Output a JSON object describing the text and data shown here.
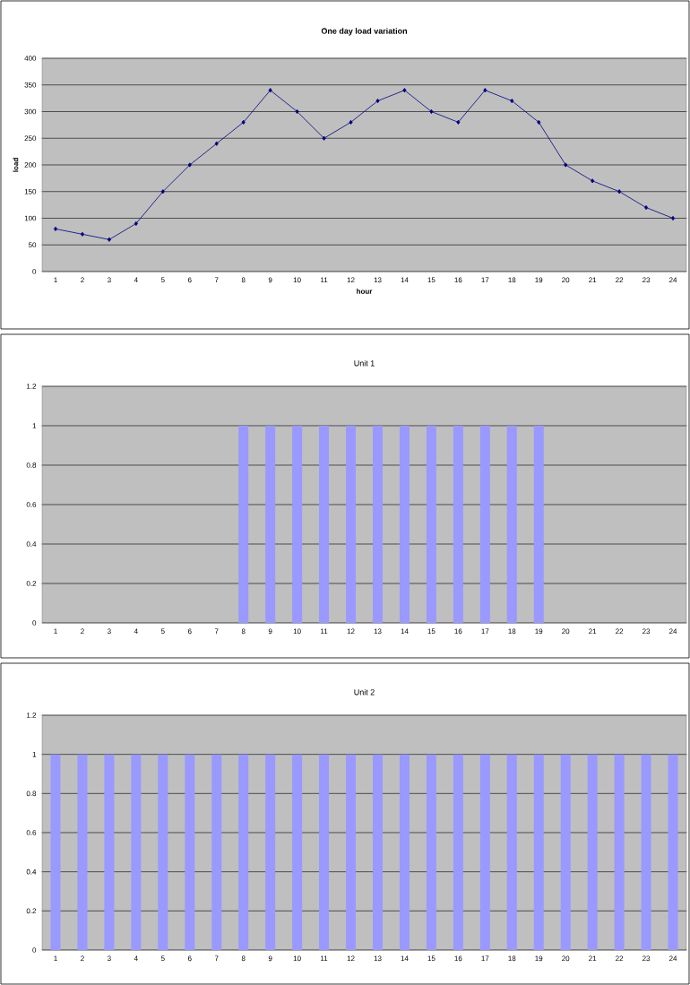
{
  "chart_data": [
    {
      "type": "line",
      "title": "One day load variation",
      "xlabel": "hour",
      "ylabel": "load",
      "categories": [
        "1",
        "2",
        "3",
        "4",
        "5",
        "6",
        "7",
        "8",
        "9",
        "10",
        "11",
        "12",
        "13",
        "14",
        "15",
        "16",
        "17",
        "18",
        "19",
        "20",
        "21",
        "22",
        "23",
        "24"
      ],
      "values": [
        80,
        70,
        60,
        90,
        150,
        200,
        240,
        280,
        340,
        300,
        250,
        280,
        320,
        340,
        300,
        280,
        340,
        320,
        280,
        200,
        170,
        150,
        120,
        100
      ],
      "color": "#000080",
      "marker": "diamond",
      "ylim": [
        0,
        400
      ],
      "yticks": [
        0,
        50,
        100,
        150,
        200,
        250,
        300,
        350,
        400
      ],
      "grid": "y"
    },
    {
      "type": "bar",
      "title": "Unit 1",
      "categories": [
        "1",
        "2",
        "3",
        "4",
        "5",
        "6",
        "7",
        "8",
        "9",
        "10",
        "11",
        "12",
        "13",
        "14",
        "15",
        "16",
        "17",
        "18",
        "19",
        "20",
        "21",
        "22",
        "23",
        "24"
      ],
      "values": [
        0,
        0,
        0,
        0,
        0,
        0,
        0,
        1,
        1,
        1,
        1,
        1,
        1,
        1,
        1,
        1,
        1,
        1,
        1,
        0,
        0,
        0,
        0,
        0
      ],
      "color": "#9999ff",
      "ylim": [
        0,
        1.2
      ],
      "yticks": [
        0,
        0.2,
        0.4,
        0.6,
        0.8,
        1,
        1.2
      ],
      "grid": "y"
    },
    {
      "type": "bar",
      "title": "Unit 2",
      "categories": [
        "1",
        "2",
        "3",
        "4",
        "5",
        "6",
        "7",
        "8",
        "9",
        "10",
        "11",
        "12",
        "13",
        "14",
        "15",
        "16",
        "17",
        "18",
        "19",
        "20",
        "21",
        "22",
        "23",
        "24"
      ],
      "values": [
        1,
        1,
        1,
        1,
        1,
        1,
        1,
        1,
        1,
        1,
        1,
        1,
        1,
        1,
        1,
        1,
        1,
        1,
        1,
        1,
        1,
        1,
        1,
        1
      ],
      "color": "#9999ff",
      "ylim": [
        0,
        1.2
      ],
      "yticks": [
        0,
        0.2,
        0.4,
        0.6,
        0.8,
        1,
        1.2
      ],
      "grid": "y"
    }
  ]
}
